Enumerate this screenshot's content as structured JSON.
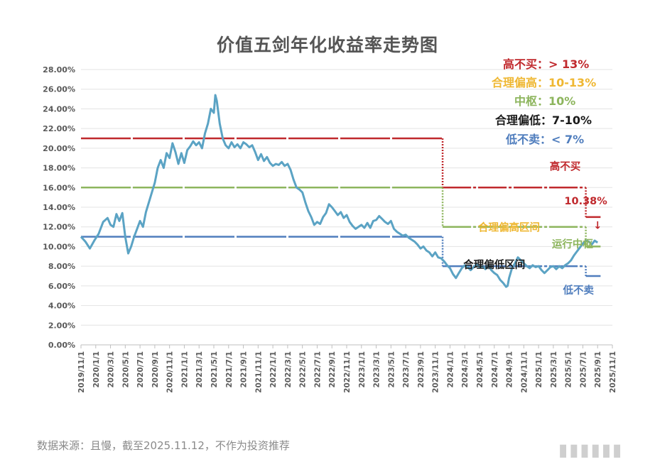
{
  "title": "价值五剑年化收益率走势图",
  "footer": "数据来源：且慢，截至2025.11.12，不作为投资推荐",
  "legend": [
    {
      "label": "高不买：",
      "value": "> 13%",
      "color": "#c0292d"
    },
    {
      "label": "合理偏高：",
      "value": "10-13%",
      "color": "#efb732"
    },
    {
      "label": "中枢：",
      "value": "10%",
      "color": "#8db55d"
    },
    {
      "label": "合理偏低：",
      "value": "7-10%",
      "color": "#1a1a1a"
    },
    {
      "label": "低不卖：",
      "value": "< 7%",
      "color": "#4f7dbd"
    }
  ],
  "chart_data": {
    "type": "line",
    "title": "价值五剑年化收益率走势图",
    "xlabel": "",
    "ylabel": "",
    "ylim": [
      0,
      28
    ],
    "y_ticks": [
      "0.00%",
      "2.00%",
      "4.00%",
      "6.00%",
      "8.00%",
      "10.00%",
      "12.00%",
      "14.00%",
      "16.00%",
      "18.00%",
      "20.00%",
      "22.00%",
      "24.00%",
      "26.00%",
      "28.00%"
    ],
    "x_ticks": [
      "2019/11/1",
      "2020/1/1",
      "2020/3/1",
      "2020/5/1",
      "2020/7/1",
      "2020/9/1",
      "2020/11/1",
      "2021/1/1",
      "2021/3/1",
      "2021/5/1",
      "2021/7/1",
      "2021/9/1",
      "2021/11/1",
      "2022/1/1",
      "2022/3/1",
      "2022/5/1",
      "2022/7/1",
      "2022/9/1",
      "2022/11/1",
      "2023/1/1",
      "2023/3/1",
      "2023/5/1",
      "2023/7/1",
      "2023/9/1",
      "2023/11/1",
      "2024/1/1",
      "2024/3/1",
      "2024/5/1",
      "2024/7/1",
      "2024/9/1",
      "2024/11/1",
      "2025/1/1",
      "2025/3/1",
      "2025/5/1",
      "2025/7/1",
      "2025/9/1",
      "2025/11/1"
    ],
    "grid": true,
    "series": [
      {
        "color": "#5ba3c4",
        "points": [
          [
            0,
            11.0
          ],
          [
            0.3,
            10.5
          ],
          [
            0.6,
            9.8
          ],
          [
            0.9,
            10.6
          ],
          [
            1.2,
            11.3
          ],
          [
            1.5,
            12.5
          ],
          [
            1.8,
            12.9
          ],
          [
            2.0,
            12.2
          ],
          [
            2.2,
            12.0
          ],
          [
            2.4,
            13.3
          ],
          [
            2.6,
            12.6
          ],
          [
            2.8,
            13.4
          ],
          [
            3.0,
            11.0
          ],
          [
            3.2,
            9.3
          ],
          [
            3.4,
            10.0
          ],
          [
            3.6,
            11.0
          ],
          [
            3.8,
            11.8
          ],
          [
            4.0,
            12.6
          ],
          [
            4.2,
            12.0
          ],
          [
            4.4,
            13.5
          ],
          [
            4.7,
            15.0
          ],
          [
            5.0,
            16.5
          ],
          [
            5.2,
            18.0
          ],
          [
            5.4,
            18.8
          ],
          [
            5.6,
            18.0
          ],
          [
            5.8,
            19.5
          ],
          [
            6.0,
            19.0
          ],
          [
            6.2,
            20.5
          ],
          [
            6.4,
            19.6
          ],
          [
            6.6,
            18.4
          ],
          [
            6.8,
            19.5
          ],
          [
            7.0,
            18.5
          ],
          [
            7.2,
            19.8
          ],
          [
            7.4,
            20.2
          ],
          [
            7.6,
            20.7
          ],
          [
            7.8,
            20.3
          ],
          [
            8.0,
            20.6
          ],
          [
            8.2,
            20.0
          ],
          [
            8.4,
            21.5
          ],
          [
            8.6,
            22.5
          ],
          [
            8.8,
            24.0
          ],
          [
            9.0,
            23.6
          ],
          [
            9.1,
            25.4
          ],
          [
            9.2,
            24.8
          ],
          [
            9.4,
            22.5
          ],
          [
            9.6,
            21.0
          ],
          [
            9.8,
            20.3
          ],
          [
            10.0,
            20.0
          ],
          [
            10.2,
            20.6
          ],
          [
            10.4,
            20.1
          ],
          [
            10.6,
            20.4
          ],
          [
            10.8,
            20.0
          ],
          [
            11.0,
            20.6
          ],
          [
            11.2,
            20.4
          ],
          [
            11.4,
            20.1
          ],
          [
            11.6,
            20.3
          ],
          [
            11.8,
            19.6
          ],
          [
            12.0,
            18.8
          ],
          [
            12.2,
            19.4
          ],
          [
            12.4,
            18.7
          ],
          [
            12.6,
            19.1
          ],
          [
            12.8,
            18.5
          ],
          [
            13.0,
            18.2
          ],
          [
            13.2,
            18.4
          ],
          [
            13.4,
            18.3
          ],
          [
            13.6,
            18.6
          ],
          [
            13.8,
            18.2
          ],
          [
            14.0,
            18.4
          ],
          [
            14.2,
            17.8
          ],
          [
            14.4,
            16.8
          ],
          [
            14.6,
            16.0
          ],
          [
            14.8,
            15.8
          ],
          [
            15.0,
            15.5
          ],
          [
            15.2,
            14.5
          ],
          [
            15.4,
            13.6
          ],
          [
            15.6,
            13.0
          ],
          [
            15.8,
            12.2
          ],
          [
            16.0,
            12.5
          ],
          [
            16.2,
            12.3
          ],
          [
            16.4,
            13.0
          ],
          [
            16.6,
            13.4
          ],
          [
            16.8,
            14.3
          ],
          [
            17.0,
            14.0
          ],
          [
            17.2,
            13.6
          ],
          [
            17.4,
            13.2
          ],
          [
            17.6,
            13.5
          ],
          [
            17.8,
            12.9
          ],
          [
            18.0,
            13.2
          ],
          [
            18.2,
            12.5
          ],
          [
            18.4,
            12.1
          ],
          [
            18.6,
            11.8
          ],
          [
            18.8,
            12.0
          ],
          [
            19.0,
            12.2
          ],
          [
            19.2,
            11.9
          ],
          [
            19.4,
            12.4
          ],
          [
            19.6,
            11.9
          ],
          [
            19.8,
            12.6
          ],
          [
            20.0,
            12.7
          ],
          [
            20.2,
            13.1
          ],
          [
            20.4,
            12.8
          ],
          [
            20.6,
            12.5
          ],
          [
            20.8,
            12.3
          ],
          [
            21.0,
            12.6
          ],
          [
            21.2,
            11.8
          ],
          [
            21.4,
            11.5
          ],
          [
            21.6,
            11.3
          ],
          [
            21.8,
            11.1
          ],
          [
            22.0,
            11.2
          ],
          [
            22.2,
            10.9
          ],
          [
            22.4,
            10.7
          ],
          [
            22.6,
            10.5
          ],
          [
            22.8,
            10.2
          ],
          [
            23.0,
            9.8
          ],
          [
            23.2,
            10.0
          ],
          [
            23.4,
            9.6
          ],
          [
            23.6,
            9.4
          ],
          [
            23.8,
            9.0
          ],
          [
            24.0,
            9.4
          ],
          [
            24.2,
            8.9
          ],
          [
            24.4,
            8.8
          ],
          [
            24.6,
            8.5
          ],
          [
            24.8,
            8.1
          ],
          [
            25.0,
            7.8
          ],
          [
            25.2,
            7.2
          ],
          [
            25.4,
            6.8
          ],
          [
            25.6,
            7.3
          ],
          [
            25.8,
            7.8
          ],
          [
            26.0,
            8.1
          ],
          [
            26.2,
            7.9
          ],
          [
            26.4,
            7.6
          ],
          [
            26.6,
            7.9
          ],
          [
            26.8,
            8.2
          ],
          [
            27.0,
            7.9
          ],
          [
            27.2,
            8.0
          ],
          [
            27.4,
            7.7
          ],
          [
            27.6,
            8.1
          ],
          [
            27.8,
            7.6
          ],
          [
            28.0,
            7.3
          ],
          [
            28.2,
            7.1
          ],
          [
            28.4,
            6.6
          ],
          [
            28.6,
            6.3
          ],
          [
            28.8,
            5.9
          ],
          [
            28.9,
            6.0
          ],
          [
            29.0,
            6.8
          ],
          [
            29.2,
            7.8
          ],
          [
            29.4,
            8.3
          ],
          [
            29.6,
            8.9
          ],
          [
            29.8,
            8.6
          ],
          [
            30.0,
            8.3
          ],
          [
            30.2,
            8.0
          ],
          [
            30.4,
            7.8
          ],
          [
            30.6,
            8.1
          ],
          [
            30.8,
            7.9
          ],
          [
            31.0,
            8.0
          ],
          [
            31.2,
            7.6
          ],
          [
            31.4,
            7.3
          ],
          [
            31.6,
            7.6
          ],
          [
            31.8,
            7.9
          ],
          [
            32.0,
            8.0
          ],
          [
            32.2,
            7.7
          ],
          [
            32.4,
            8.0
          ],
          [
            32.6,
            7.8
          ],
          [
            32.8,
            8.1
          ],
          [
            33.0,
            8.3
          ],
          [
            33.2,
            8.6
          ],
          [
            33.4,
            9.1
          ],
          [
            33.6,
            9.5
          ],
          [
            33.8,
            9.9
          ],
          [
            34.0,
            10.3
          ],
          [
            34.2,
            10.6
          ],
          [
            34.4,
            10.5
          ],
          [
            34.6,
            10.2
          ],
          [
            34.8,
            10.6
          ],
          [
            35.0,
            10.4
          ]
        ]
      }
    ],
    "bands": [
      {
        "name": "high",
        "color": "#c0292d",
        "segments": [
          [
            0,
            24.5,
            21
          ],
          [
            24.5,
            34.2,
            16
          ],
          [
            34.2,
            35.2,
            13
          ]
        ]
      },
      {
        "name": "upper",
        "color": "#8db55d",
        "segments": [
          [
            0,
            24.5,
            16
          ],
          [
            24.5,
            34.2,
            12
          ],
          [
            34.2,
            35.2,
            10
          ]
        ]
      },
      {
        "name": "low",
        "color": "#4f7dbd",
        "segments": [
          [
            0,
            24.5,
            11
          ],
          [
            24.5,
            34.2,
            8
          ],
          [
            34.2,
            35.2,
            7
          ]
        ]
      }
    ],
    "annotations": [
      {
        "text": "高不买",
        "color": "#c0292d",
        "x": 32.8,
        "y": 17.8
      },
      {
        "text": "10.38%",
        "color": "#c0292d",
        "x": 34.2,
        "y": 14.3
      },
      {
        "text": "↓",
        "color": "#c0292d",
        "x": 35.0,
        "y": 11.8
      },
      {
        "text": "合理偏高区间",
        "color": "#efb732",
        "x": 29.0,
        "y": 11.6
      },
      {
        "text": "运行中枢",
        "color": "#8db55d",
        "x": 33.3,
        "y": 9.9
      },
      {
        "text": "合理偏低区间",
        "color": "#1a1a1a",
        "x": 28.0,
        "y": 7.8
      },
      {
        "text": "低不卖",
        "color": "#4f7dbd",
        "x": 33.7,
        "y": 5.2
      }
    ]
  }
}
